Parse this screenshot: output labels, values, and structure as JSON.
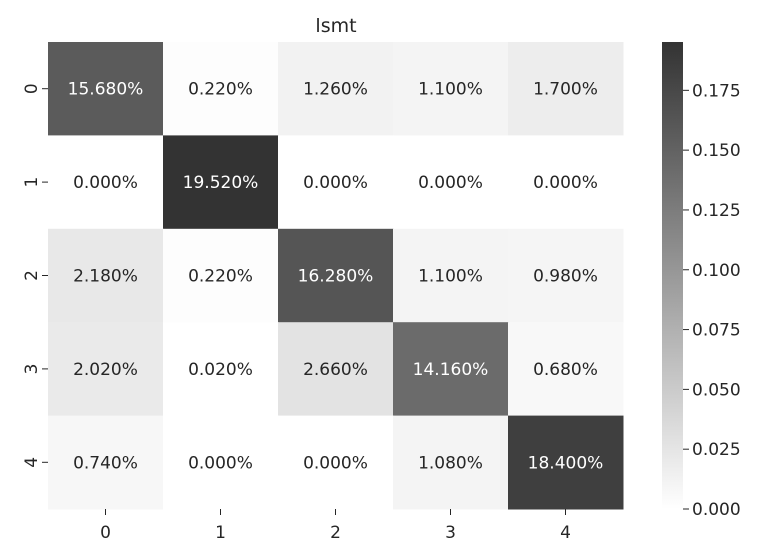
{
  "chart_data": {
    "type": "heatmap",
    "title": "lsmt",
    "xlabel": "",
    "ylabel": "",
    "x_categories": [
      "0",
      "1",
      "2",
      "3",
      "4"
    ],
    "y_categories": [
      "0",
      "1",
      "2",
      "3",
      "4"
    ],
    "values": [
      [
        0.1568,
        0.0022,
        0.0126,
        0.011,
        0.017
      ],
      [
        0.0,
        0.1952,
        0.0,
        0.0,
        0.0
      ],
      [
        0.0218,
        0.0022,
        0.1628,
        0.011,
        0.0098
      ],
      [
        0.0202,
        0.0002,
        0.0266,
        0.1416,
        0.0068
      ],
      [
        0.0074,
        0.0,
        0.0,
        0.0108,
        0.184
      ]
    ],
    "annotations": [
      [
        "15.680%",
        "0.220%",
        "1.260%",
        "1.100%",
        "1.700%"
      ],
      [
        "0.000%",
        "19.520%",
        "0.000%",
        "0.000%",
        "0.000%"
      ],
      [
        "2.180%",
        "0.220%",
        "16.280%",
        "1.100%",
        "0.980%"
      ],
      [
        "2.020%",
        "0.020%",
        "2.660%",
        "14.160%",
        "0.680%"
      ],
      [
        "0.740%",
        "0.000%",
        "0.000%",
        "1.080%",
        "18.400%"
      ]
    ],
    "colorbar": {
      "vmin": 0.0,
      "vmax": 0.1952,
      "ticks": [
        0.0,
        0.025,
        0.05,
        0.075,
        0.1,
        0.125,
        0.15,
        0.175
      ],
      "tick_labels": [
        "0.000",
        "0.025",
        "0.050",
        "0.075",
        "0.100",
        "0.125",
        "0.150",
        "0.175"
      ],
      "color_low": "#ffffff",
      "color_high": "#333333"
    },
    "grid": false,
    "legend": "colorbar-right"
  }
}
